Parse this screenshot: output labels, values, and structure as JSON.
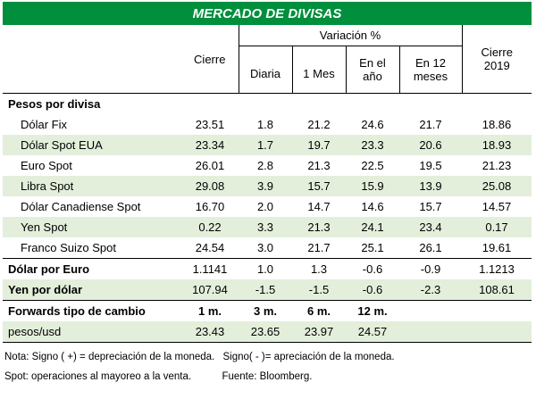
{
  "title": "MERCADO DE DIVISAS",
  "header": {
    "cierre": "Cierre",
    "variacion": "Variación %",
    "diaria": "Diaria",
    "un_mes": "1 Mes",
    "en_el": "En el",
    "anio": "año",
    "en12": "En 12",
    "meses": "meses",
    "cierre2019_a": "Cierre",
    "cierre2019_b": "2019"
  },
  "section_pesos": "Pesos por divisa",
  "rows": [
    {
      "label": "Dólar Fix",
      "values": [
        "23.51",
        "1.8",
        "21.2",
        "24.6",
        "21.7",
        "18.86"
      ]
    },
    {
      "label": "Dólar Spot EUA",
      "values": [
        "23.34",
        "1.7",
        "19.7",
        "23.3",
        "20.6",
        "18.93"
      ]
    },
    {
      "label": "Euro Spot",
      "values": [
        "26.01",
        "2.8",
        "21.3",
        "22.5",
        "19.5",
        "21.23"
      ]
    },
    {
      "label": "Libra Spot",
      "values": [
        "29.08",
        "3.9",
        "15.7",
        "15.9",
        "13.9",
        "25.08"
      ]
    },
    {
      "label": "Dólar Canadiense Spot",
      "values": [
        "16.70",
        "2.0",
        "14.7",
        "14.6",
        "15.7",
        "14.57"
      ]
    },
    {
      "label": "Yen Spot",
      "values": [
        "0.22",
        "3.3",
        "21.3",
        "24.1",
        "23.4",
        "0.17"
      ]
    },
    {
      "label": "Franco Suizo Spot",
      "values": [
        "24.54",
        "3.0",
        "21.7",
        "25.1",
        "26.1",
        "19.61"
      ]
    }
  ],
  "dolar_euro": {
    "label": "Dólar por Euro",
    "values": [
      "1.1141",
      "1.0",
      "1.3",
      "-0.6",
      "-0.9",
      "1.1213"
    ]
  },
  "yen_dolar": {
    "label": "Yen por dólar",
    "values": [
      "107.94",
      "-1.5",
      "-1.5",
      "-0.6",
      "-2.3",
      "108.61"
    ]
  },
  "forwards": {
    "label": "Forwards tipo de cambio",
    "periods": [
      "1 m.",
      "3 m.",
      "6 m.",
      "12 m."
    ],
    "row_label": "pesos/usd",
    "values": [
      "23.43",
      "23.65",
      "23.97",
      "24.57"
    ]
  },
  "notes": {
    "line1_a": "Nota: Signo ( +) = depreciación de la moneda.",
    "line1_b": "Signo( - )= apreciación de la moneda.",
    "line2_a": "Spot: operaciones al mayoreo a la venta.",
    "line2_b": "Fuente: Bloomberg."
  }
}
